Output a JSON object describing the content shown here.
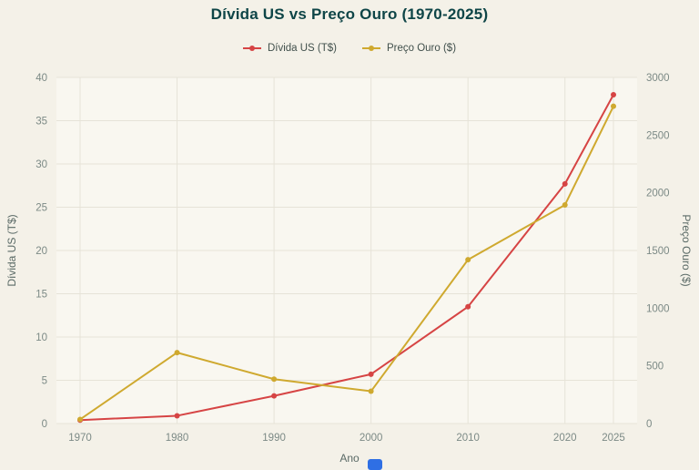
{
  "title": "Dívida US vs Preço Ouro (1970-2025)",
  "colors": {
    "page_background": "#f4f1e8",
    "plot_background": "#f9f7f0",
    "grid": "#e6e3d8",
    "title_text": "#0e4547",
    "axis_text": "#7c8a86",
    "axis_title_text": "#5a6a66",
    "legend_text": "#41504c",
    "partial_badge": "#2f6fe4"
  },
  "chart_data": {
    "type": "line",
    "title": "Dívida US vs Preço Ouro (1970-2025)",
    "x": [
      1970,
      1980,
      1990,
      2000,
      2010,
      2020,
      2025
    ],
    "x_ticklabels": [
      "1970",
      "1980",
      "1990",
      "2000",
      "2010",
      "2020",
      "2025"
    ],
    "xlabel": "Ano",
    "left_axis": {
      "label": "Dívida US (T$)",
      "min": 0,
      "max": 40,
      "ticks": [
        0,
        5,
        10,
        15,
        20,
        25,
        30,
        35,
        40
      ]
    },
    "right_axis": {
      "label": "Preço Ouro ($)",
      "min": 0,
      "max": 3000,
      "ticks": [
        0,
        500,
        1000,
        1500,
        2000,
        2500,
        3000
      ]
    },
    "series": [
      {
        "name": "Dívida US (T$)",
        "axis": "left",
        "color": "#d64444",
        "values": [
          0.4,
          0.9,
          3.2,
          5.7,
          13.5,
          27.7,
          38.0
        ]
      },
      {
        "name": "Preço Ouro ($)",
        "axis": "right",
        "color": "#cfa92f",
        "values": [
          36,
          615,
          385,
          280,
          1420,
          1895,
          2750
        ]
      }
    ],
    "grid": true,
    "legend_position": "top-center"
  }
}
